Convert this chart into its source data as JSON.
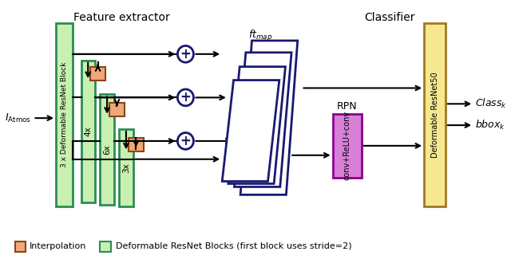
{
  "title_feature": "Feature extractor",
  "title_classifier": "Classifier",
  "label_input": "$I_{\\mathrm{Atmos}}$",
  "label_ftmap": "$ft_{map}$",
  "label_rpn": "RPN",
  "label_rpn_box": "conv+ReLU+conv",
  "label_resnet_main": "3 x Deformable ResNet Block",
  "label_resnet50": "Deformable ResNet50",
  "label_4x": "4x",
  "label_6x": "6x",
  "label_3x": "3x",
  "label_class": "$Class_k$",
  "label_bbox": "$bbox_k$",
  "legend_interp": "Interpolation",
  "legend_deform": "Deformable ResNet Blocks (first block uses stride=2)",
  "color_green_light": "#c8f0b0",
  "color_green_dark": "#2E8B57",
  "color_orange": "#f0a878",
  "color_orange_dark": "#8B4513",
  "color_yellow": "#f5e890",
  "color_yellow_dark": "#a07820",
  "color_purple": "#d880d8",
  "color_purple_dark": "#8B008B",
  "color_navy": "#191970",
  "bg_color": "#FFFFFF"
}
